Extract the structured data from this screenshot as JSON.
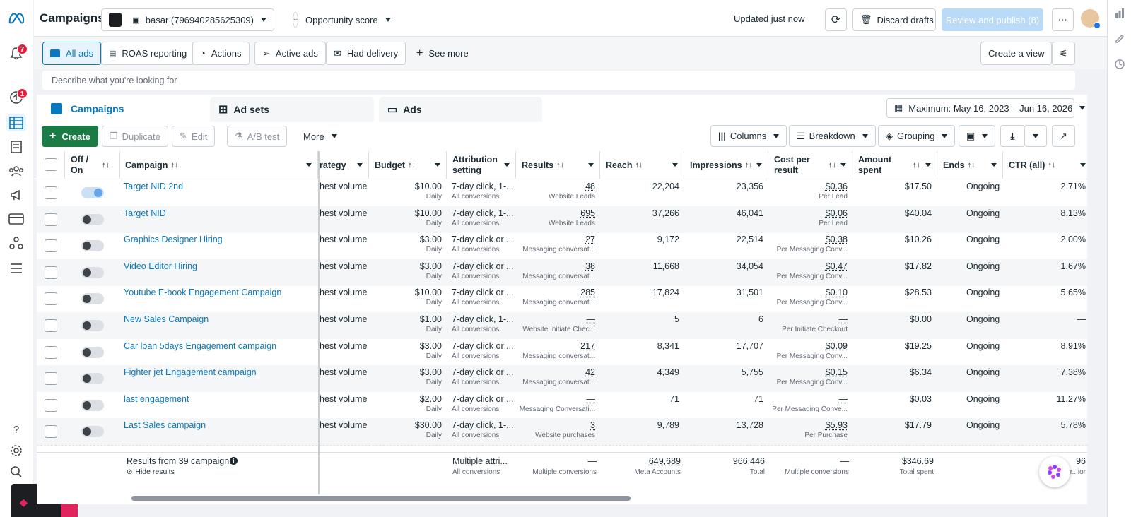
{
  "colors": {
    "accent": "#0a78be",
    "create_green": "#1a7b45",
    "badge_red": "#e41e3f"
  },
  "nav": {
    "notifications_badge": "7",
    "activity_badge": "1"
  },
  "header": {
    "title": "Campaigns",
    "account": "basar (796940285625309)",
    "opportunity": "Opportunity score",
    "opportunity_score": "--",
    "updated": "Updated just now",
    "discard": "Discard drafts",
    "review": "Review and publish (8)"
  },
  "views": {
    "items": [
      "All ads",
      "ROAS reporting",
      "Actions",
      "Active ads",
      "Had delivery"
    ],
    "see_more": "See more",
    "create_view": "Create a view"
  },
  "search": {
    "placeholder": "Describe what you're looking for"
  },
  "tabs": {
    "campaigns": "Campaigns",
    "adsets": "Ad sets",
    "ads": "Ads"
  },
  "toolbar": {
    "create": "Create",
    "duplicate": "Duplicate",
    "edit": "Edit",
    "abtest": "A/B test",
    "more": "More",
    "columns": "Columns",
    "breakdown": "Breakdown",
    "grouping": "Grouping",
    "date_range": "Maximum: May 16, 2023 – Jun 16, 2026"
  },
  "table": {
    "headers": {
      "offon": "Off / On",
      "campaign": "Campaign",
      "strategy": "rategy",
      "budget": "Budget",
      "attribution": "Attribution setting",
      "results": "Results",
      "reach": "Reach",
      "impressions": "Impressions",
      "cpr": "Cost per result",
      "amount": "Amount spent",
      "ends": "Ends",
      "ctr": "CTR (all)"
    },
    "rows": [
      {
        "on": true,
        "name": "Target NID 2nd",
        "strategy": "hest volume",
        "budget": "$10.00",
        "budget_sub": "Daily",
        "attr": "7-day click, 1-...",
        "attr_sub": "All conversions",
        "results": "48",
        "results_sub": "Website Leads",
        "reach": "22,204",
        "impr": "23,356",
        "cpr": "$0.36",
        "cpr_sub": "Per Lead",
        "spent": "$17.50",
        "ends": "Ongoing",
        "ctr": "2.71%"
      },
      {
        "on": false,
        "name": "Target NID",
        "strategy": "hest volume",
        "budget": "$10.00",
        "budget_sub": "Daily",
        "attr": "7-day click, 1-...",
        "attr_sub": "All conversions",
        "results": "695",
        "results_sub": "Website Leads",
        "reach": "37,266",
        "impr": "46,041",
        "cpr": "$0.06",
        "cpr_sub": "Per Lead",
        "spent": "$40.04",
        "ends": "Ongoing",
        "ctr": "8.13%"
      },
      {
        "on": false,
        "name": "Graphics Designer Hiring",
        "strategy": "hest volume",
        "budget": "$3.00",
        "budget_sub": "Daily",
        "attr": "7-day click or ...",
        "attr_sub": "All conversions",
        "results": "27",
        "results_sub": "Messaging conversat...",
        "reach": "9,172",
        "impr": "22,514",
        "cpr": "$0.38",
        "cpr_sub": "Per Messaging Conv...",
        "spent": "$10.26",
        "ends": "Ongoing",
        "ctr": "2.00%"
      },
      {
        "on": false,
        "name": "Video Editor Hiring",
        "strategy": "hest volume",
        "budget": "$3.00",
        "budget_sub": "Daily",
        "attr": "7-day click or ...",
        "attr_sub": "All conversions",
        "results": "38",
        "results_sub": "Messaging conversat...",
        "reach": "11,668",
        "impr": "34,054",
        "cpr": "$0.47",
        "cpr_sub": "Per Messaging Conv...",
        "spent": "$17.82",
        "ends": "Ongoing",
        "ctr": "1.67%"
      },
      {
        "on": false,
        "name": "Youtube E-book Engagement Campaign",
        "strategy": "hest volume",
        "budget": "$10.00",
        "budget_sub": "Daily",
        "attr": "7-day click or ...",
        "attr_sub": "All conversions",
        "results": "285",
        "results_sub": "Messaging conversat...",
        "reach": "17,824",
        "impr": "31,501",
        "cpr": "$0.10",
        "cpr_sub": "Per Messaging Conv...",
        "spent": "$28.53",
        "ends": "Ongoing",
        "ctr": "5.65%"
      },
      {
        "on": false,
        "name": "New Sales Campaign",
        "strategy": "hest volume",
        "budget": "$1.00",
        "budget_sub": "Daily",
        "attr": "7-day click, 1-...",
        "attr_sub": "All conversions",
        "results": "—",
        "results_sub": "Website Initiate Chec...",
        "reach": "5",
        "impr": "6",
        "cpr": "—",
        "cpr_sub": "Per Initiate Checkout",
        "spent": "$0.00",
        "ends": "Ongoing",
        "ctr": "—"
      },
      {
        "on": false,
        "name": "Car loan 5days Engagement campaign",
        "strategy": "hest volume",
        "budget": "$3.00",
        "budget_sub": "Daily",
        "attr": "7-day click or ...",
        "attr_sub": "All conversions",
        "results": "217",
        "results_sub": "Messaging conversat...",
        "reach": "8,341",
        "impr": "17,707",
        "cpr": "$0.09",
        "cpr_sub": "Per Messaging Conv...",
        "spent": "$19.25",
        "ends": "Ongoing",
        "ctr": "8.91%"
      },
      {
        "on": false,
        "name": "Fighter jet Engagement campaign",
        "strategy": "hest volume",
        "budget": "$3.00",
        "budget_sub": "Daily",
        "attr": "7-day click or ...",
        "attr_sub": "All conversions",
        "results": "42",
        "results_sub": "Messaging conversat...",
        "reach": "4,349",
        "impr": "5,755",
        "cpr": "$0.15",
        "cpr_sub": "Per Messaging Conv...",
        "spent": "$6.34",
        "ends": "Ongoing",
        "ctr": "7.38%"
      },
      {
        "on": false,
        "name": "last engagement",
        "strategy": "hest volume",
        "budget": "$2.00",
        "budget_sub": "Daily",
        "attr": "7-day click or ...",
        "attr_sub": "All conversions",
        "results": "—",
        "results_sub": "Messaging Conversati...",
        "reach": "71",
        "impr": "71",
        "cpr": "—",
        "cpr_sub": "Per Messaging Conve...",
        "spent": "$0.03",
        "ends": "Ongoing",
        "ctr": "11.27%"
      },
      {
        "on": false,
        "name": "Last Sales campaign",
        "strategy": "hest volume",
        "budget": "$30.00",
        "budget_sub": "Daily",
        "attr": "7-day click, 1-...",
        "attr_sub": "All conversions",
        "results": "3",
        "results_sub": "Website purchases",
        "reach": "9,789",
        "impr": "13,728",
        "cpr": "$5.93",
        "cpr_sub": "Per Purchase",
        "spent": "$17.79",
        "ends": "Ongoing",
        "ctr": "5.78%"
      }
    ],
    "footer": {
      "results_from": "Results from 39 campaigns",
      "hide": "Hide results",
      "attr": "Multiple attri...",
      "attr_sub": "All conversions",
      "results": "—",
      "results_sub": "Multiple conversions",
      "reach": "649,689",
      "reach_sub": "Meta Accounts",
      "impr": "966,446",
      "impr_sub": "Total",
      "cpr": "—",
      "cpr_sub": "Multiple conversions",
      "spent": "$346.69",
      "spent_sub": "Total spent",
      "ctr": "96",
      "ctr_sub": "Per...ior"
    }
  }
}
